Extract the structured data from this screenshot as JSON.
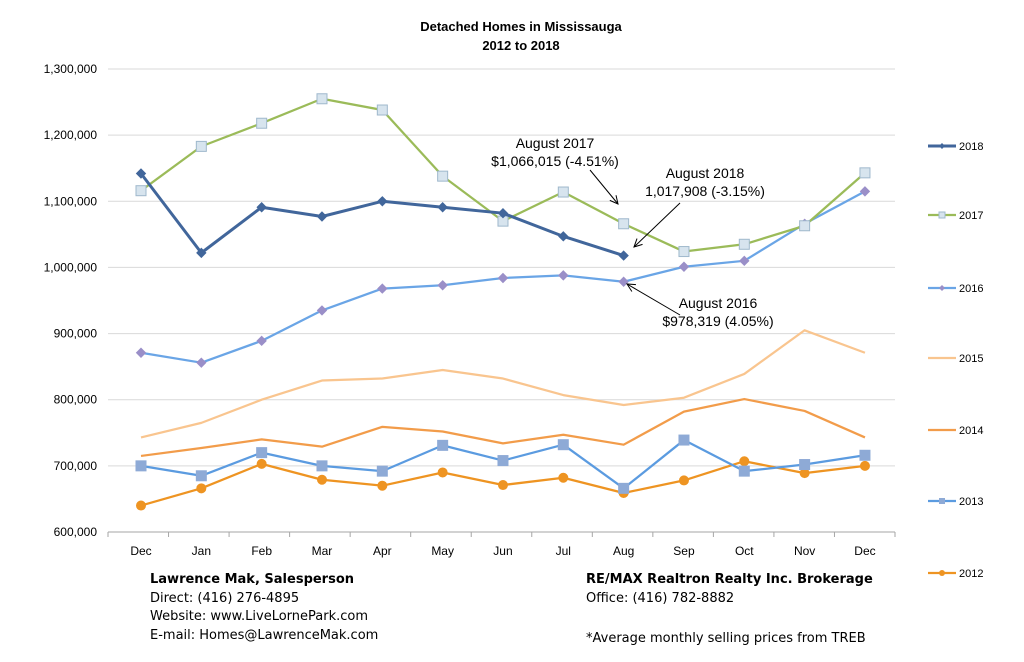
{
  "chart_data": {
    "type": "line",
    "title": "Detached Homes in Mississauga",
    "subtitle": "2012 to 2018",
    "categories": [
      "Dec",
      "Jan",
      "Feb",
      "Mar",
      "Apr",
      "May",
      "Jun",
      "Jul",
      "Aug",
      "Sep",
      "Oct",
      "Nov",
      "Dec"
    ],
    "ylim": [
      600000,
      1300000
    ],
    "yticks": [
      "600,000",
      "700,000",
      "800,000",
      "900,000",
      "1,000,000",
      "1,100,000",
      "1,200,000",
      "1,300,000"
    ],
    "ytick_values": [
      600000,
      700000,
      800000,
      900000,
      1000000,
      1100000,
      1200000,
      1300000
    ],
    "grid": true,
    "legend_position": "right",
    "series": [
      {
        "name": "2018",
        "color": "#41669b",
        "marker": "diamond",
        "bold": true,
        "values": [
          1142000,
          1022000,
          1091000,
          1077000,
          1100000,
          1091000,
          1082000,
          1047000,
          1017908,
          null,
          null,
          null,
          null
        ]
      },
      {
        "name": "2017",
        "color": "#9bbb59",
        "marker": "square-pale",
        "markerFill": "#d7e4ee",
        "markerStroke": "#9fb8cc",
        "values": [
          1116000,
          1183000,
          1218000,
          1255000,
          1238000,
          1138000,
          1070000,
          1114000,
          1066015,
          1024000,
          1035000,
          1063000,
          1143000
        ]
      },
      {
        "name": "2016",
        "color": "#6aa5e6",
        "marker": "diamond",
        "markerFill": "#9a8fc8",
        "values": [
          871000,
          856000,
          889000,
          935000,
          968000,
          973000,
          984000,
          988000,
          978319,
          1001000,
          1010000,
          1066000,
          1115000
        ]
      },
      {
        "name": "2015",
        "color": "#f9c58f",
        "marker": "none",
        "values": [
          743000,
          765000,
          800000,
          829000,
          832000,
          845000,
          832000,
          807000,
          792000,
          803000,
          839000,
          905000,
          871000
        ]
      },
      {
        "name": "2014",
        "color": "#f29c4a",
        "marker": "none",
        "values": [
          715000,
          727000,
          740000,
          729000,
          759000,
          752000,
          734000,
          747000,
          732000,
          782000,
          801000,
          783000,
          743000
        ]
      },
      {
        "name": "2013",
        "color": "#5b9be0",
        "marker": "square",
        "markerFill": "#8eaad6",
        "values": [
          700000,
          685000,
          720000,
          700000,
          692000,
          731000,
          708000,
          732000,
          666000,
          739000,
          692000,
          702000,
          716000
        ]
      },
      {
        "name": "2012",
        "color": "#ee9422",
        "marker": "circle",
        "values": [
          640000,
          666000,
          703000,
          679000,
          670000,
          690000,
          671000,
          682000,
          659000,
          678000,
          707000,
          689000,
          700000
        ]
      }
    ],
    "annotations": [
      {
        "lines": [
          "August 2017",
          "$1,066,015 (-4.51%)"
        ],
        "series": "2017",
        "category_index": 8
      },
      {
        "lines": [
          "August 2018",
          "1,017,908 (-3.15%)"
        ],
        "series": "2018",
        "category_index": 8
      },
      {
        "lines": [
          "August 2016",
          "$978,319 (4.05%)"
        ],
        "series": "2016",
        "category_index": 8
      }
    ]
  },
  "footer": {
    "agent_name": "Lawrence Mak, Salesperson",
    "direct": "Direct:  (416) 276-4895",
    "website": "Website:  www.LiveLornePark.com",
    "email": "E-mail:  Homes@LawrenceMak.com",
    "brokerage": "RE/MAX Realtron Realty Inc. Brokerage",
    "office": "Office: (416) 782-8882",
    "note": "*Average monthly selling prices from TREB"
  }
}
